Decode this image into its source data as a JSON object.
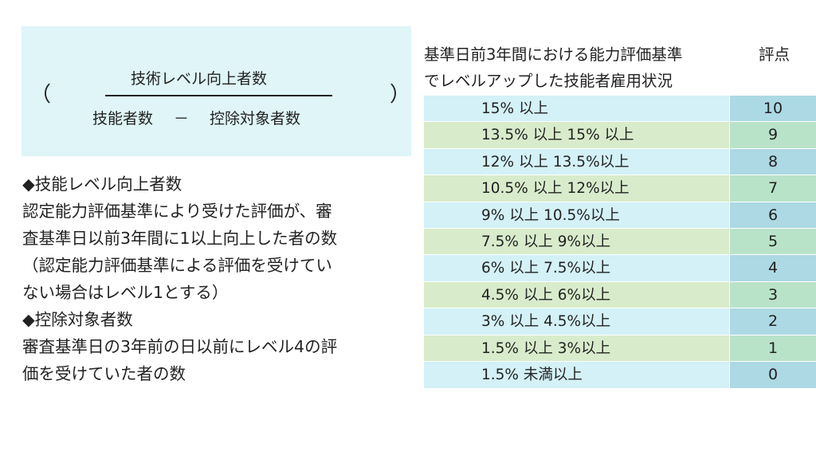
{
  "formula": {
    "numerator": "技術レベル向上者数",
    "denominator_left": "技能者数",
    "denominator_op": "－",
    "denominator_right": "控除対象者数",
    "paren_open": "（",
    "paren_close": "）"
  },
  "notes": [
    "◆技能レベル向上者数",
    "認定能力評価基準により受けた評価が、審",
    "査基準日以前3年間に1以上向上した者の数",
    "（認定能力評価基準による評価を受けてい",
    "ない場合はレベル1とする）",
    "◆控除対象者数",
    "審査基準日の3年前の日以前にレベル4の評",
    "価を受けていた者の数"
  ],
  "table": {
    "header_line1": "基準日前3年間における能力評価基準",
    "header_score": "評点",
    "header_line2": "でレベルアップした技能者雇用状況",
    "rows": [
      {
        "condition": "15% 以上",
        "score": "10"
      },
      {
        "condition": "13.5% 以上 15% 以上",
        "score": "9"
      },
      {
        "condition": "12% 以上 13.5%以上",
        "score": "8"
      },
      {
        "condition": "10.5% 以上 12%以上",
        "score": "7"
      },
      {
        "condition": "9% 以上 10.5%以上",
        "score": "6"
      },
      {
        "condition": "7.5% 以上 9%以上",
        "score": "5"
      },
      {
        "condition": "6% 以上 7.5%以上",
        "score": "4"
      },
      {
        "condition": "4.5% 以上 6%以上",
        "score": "3"
      },
      {
        "condition": "3% 以上 4.5%以上",
        "score": "2"
      },
      {
        "condition": "1.5% 以上 3%以上",
        "score": "1"
      },
      {
        "condition": "1.5% 未満以上",
        "score": "0"
      }
    ]
  },
  "colors": {
    "formula_bg": "#dff5f8",
    "row_blue": "#d3f1f7",
    "row_blue_score": "#acd9e3",
    "row_green": "#d8eccb",
    "row_green_score": "#b8e3c9"
  }
}
